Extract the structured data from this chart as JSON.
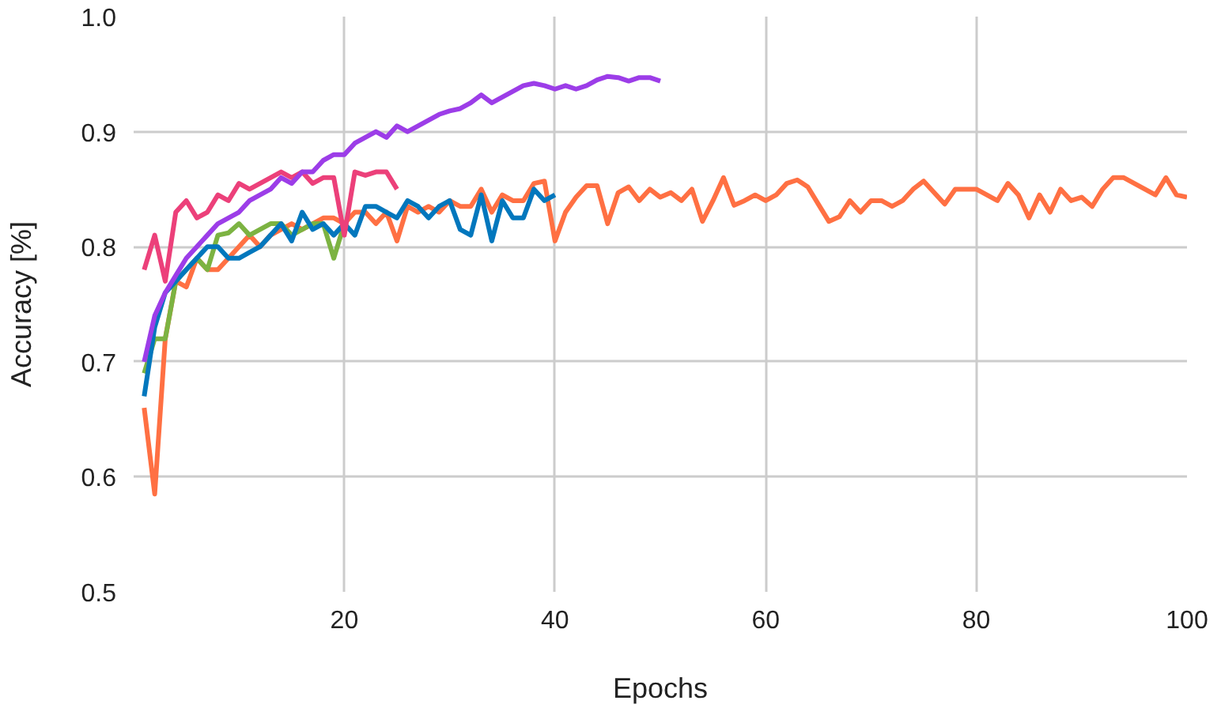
{
  "chart_data": {
    "type": "line",
    "xlabel": "Epochs",
    "ylabel": "Accuracy [%]",
    "xlim": [
      0,
      100
    ],
    "xticks": [
      20,
      40,
      60,
      80,
      100
    ],
    "ylim": [
      0.5,
      1.0
    ],
    "yticks": [
      0.5,
      0.6,
      0.7,
      0.8,
      0.9,
      {
        "value": 1.0,
        "label": "1.0"
      }
    ],
    "grid": true,
    "line_style": "solid",
    "marker": "none",
    "series": [
      {
        "color": "#ff7043",
        "x": [
          1,
          2,
          3,
          4,
          5,
          6,
          7,
          8,
          9,
          10,
          11,
          12,
          13,
          14,
          15,
          16,
          17,
          18,
          19,
          20,
          21,
          22,
          23,
          24,
          25,
          26,
          27,
          28,
          29,
          30,
          31,
          32,
          33,
          34,
          35,
          36,
          37,
          38,
          39,
          40,
          41,
          42,
          43,
          44,
          45,
          46,
          47,
          48,
          49,
          50,
          51,
          52,
          53,
          54,
          55,
          56,
          57,
          58,
          59,
          60,
          61,
          62,
          63,
          64,
          65,
          66,
          67,
          68,
          69,
          70,
          71,
          72,
          73,
          74,
          75,
          76,
          77,
          78,
          79,
          80,
          81,
          82,
          83,
          84,
          85,
          86,
          87,
          88,
          89,
          90,
          91,
          92,
          93,
          94,
          95,
          96,
          97,
          98,
          99,
          100
        ],
        "values": [
          0.66,
          0.585,
          0.72,
          0.77,
          0.765,
          0.79,
          0.78,
          0.78,
          0.79,
          0.8,
          0.81,
          0.8,
          0.81,
          0.815,
          0.82,
          0.815,
          0.82,
          0.825,
          0.825,
          0.82,
          0.83,
          0.83,
          0.82,
          0.83,
          0.805,
          0.835,
          0.83,
          0.835,
          0.83,
          0.84,
          0.835,
          0.835,
          0.85,
          0.83,
          0.845,
          0.84,
          0.84,
          0.855,
          0.857,
          0.805,
          0.83,
          0.843,
          0.853,
          0.853,
          0.82,
          0.847,
          0.852,
          0.84,
          0.85,
          0.843,
          0.847,
          0.84,
          0.85,
          0.822,
          0.84,
          0.86,
          0.836,
          0.84,
          0.845,
          0.84,
          0.845,
          0.855,
          0.858,
          0.852,
          0.837,
          0.822,
          0.826,
          0.84,
          0.83,
          0.84,
          0.84,
          0.835,
          0.84,
          0.85,
          0.857,
          0.847,
          0.837,
          0.85,
          0.85,
          0.85,
          0.845,
          0.84,
          0.855,
          0.845,
          0.825,
          0.845,
          0.83,
          0.85,
          0.84,
          0.843,
          0.835,
          0.85,
          0.86,
          0.86,
          0.855,
          0.85,
          0.845,
          0.86,
          0.845,
          0.843
        ]
      },
      {
        "color": "#7cb342",
        "x": [
          1,
          2,
          3,
          4,
          5,
          6,
          7,
          8,
          9,
          10,
          11,
          12,
          13,
          14,
          15,
          16,
          17,
          18,
          19,
          20
        ],
        "values": [
          0.69,
          0.72,
          0.72,
          0.77,
          0.78,
          0.79,
          0.78,
          0.81,
          0.812,
          0.82,
          0.81,
          0.815,
          0.82,
          0.82,
          0.81,
          0.815,
          0.82,
          0.82,
          0.79,
          0.82
        ]
      },
      {
        "color": "#0277bd",
        "x": [
          1,
          2,
          3,
          4,
          5,
          6,
          7,
          8,
          9,
          10,
          11,
          12,
          13,
          14,
          15,
          16,
          17,
          18,
          19,
          20,
          21,
          22,
          23,
          24,
          25,
          26,
          27,
          28,
          29,
          30,
          31,
          32,
          33,
          34,
          35,
          36,
          37,
          38,
          39,
          40
        ],
        "values": [
          0.67,
          0.73,
          0.76,
          0.77,
          0.78,
          0.79,
          0.8,
          0.8,
          0.79,
          0.79,
          0.795,
          0.8,
          0.81,
          0.82,
          0.805,
          0.83,
          0.815,
          0.82,
          0.81,
          0.82,
          0.81,
          0.835,
          0.835,
          0.83,
          0.825,
          0.84,
          0.835,
          0.825,
          0.835,
          0.84,
          0.815,
          0.81,
          0.845,
          0.805,
          0.84,
          0.825,
          0.825,
          0.85,
          0.84,
          0.845
        ]
      },
      {
        "color": "#ec407a",
        "x": [
          1,
          2,
          3,
          4,
          5,
          6,
          7,
          8,
          9,
          10,
          11,
          12,
          13,
          14,
          15,
          16,
          17,
          18,
          19,
          20,
          21,
          22,
          23,
          24,
          25
        ],
        "values": [
          0.78,
          0.81,
          0.77,
          0.83,
          0.84,
          0.825,
          0.83,
          0.845,
          0.84,
          0.855,
          0.85,
          0.855,
          0.86,
          0.865,
          0.86,
          0.865,
          0.855,
          0.86,
          0.86,
          0.81,
          0.865,
          0.862,
          0.865,
          0.865,
          0.85
        ]
      },
      {
        "color": "#9c3de8",
        "x": [
          1,
          2,
          3,
          4,
          5,
          6,
          7,
          8,
          9,
          10,
          11,
          12,
          13,
          14,
          15,
          16,
          17,
          18,
          19,
          20,
          21,
          22,
          23,
          24,
          25,
          26,
          27,
          28,
          29,
          30,
          31,
          32,
          33,
          34,
          35,
          36,
          37,
          38,
          39,
          40,
          41,
          42,
          43,
          44,
          45,
          46,
          47,
          48,
          49,
          50
        ],
        "values": [
          0.7,
          0.74,
          0.76,
          0.775,
          0.79,
          0.8,
          0.81,
          0.82,
          0.825,
          0.83,
          0.84,
          0.845,
          0.85,
          0.86,
          0.855,
          0.865,
          0.865,
          0.875,
          0.88,
          0.88,
          0.89,
          0.895,
          0.9,
          0.895,
          0.905,
          0.9,
          0.905,
          0.91,
          0.915,
          0.918,
          0.92,
          0.925,
          0.932,
          0.925,
          0.93,
          0.935,
          0.94,
          0.942,
          0.94,
          0.937,
          0.94,
          0.937,
          0.94,
          0.945,
          0.948,
          0.947,
          0.944,
          0.947,
          0.947,
          0.944
        ]
      }
    ]
  }
}
